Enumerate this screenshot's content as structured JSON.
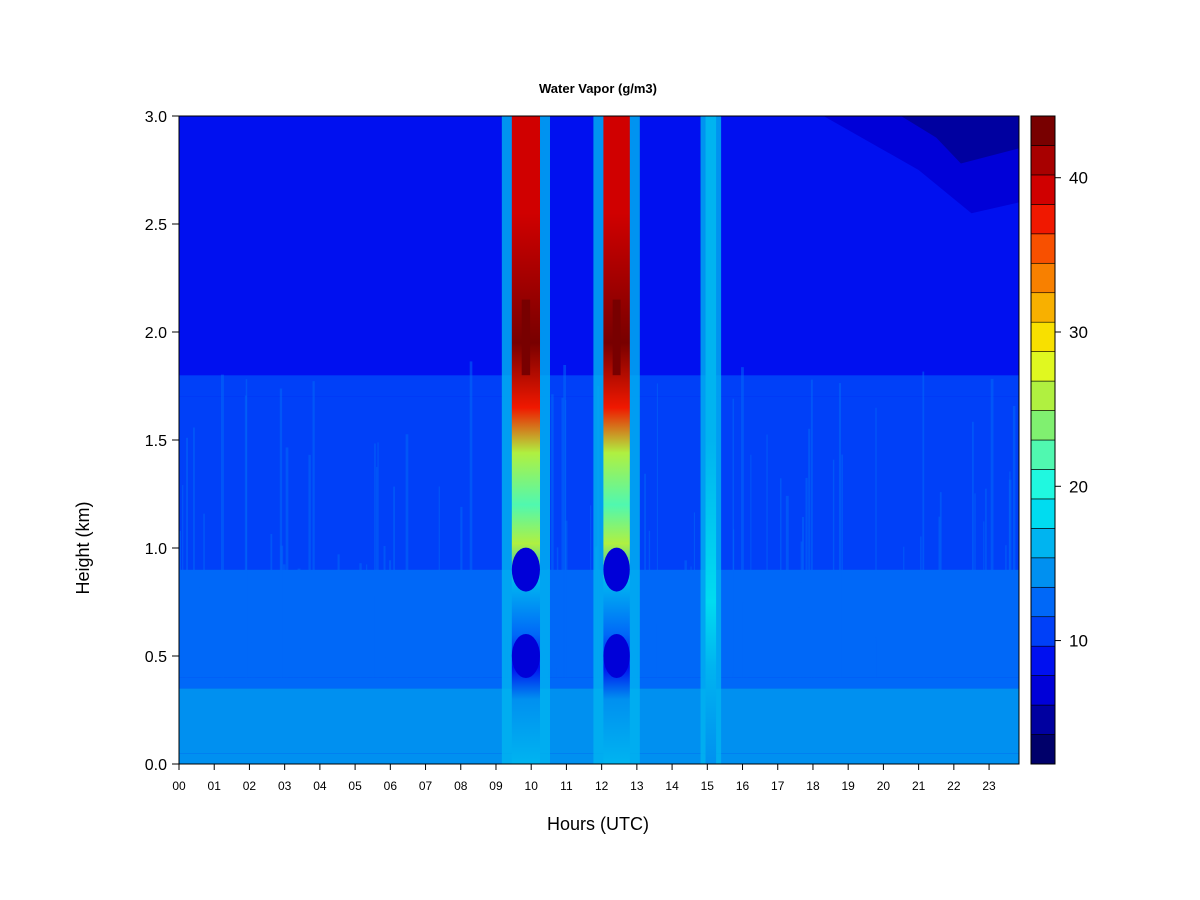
{
  "chart_data": {
    "type": "heatmap",
    "title": "Water Vapor (g/m3)",
    "xlabel": "Hours (UTC)",
    "ylabel": "Height (km)",
    "xlim": [
      0,
      23.85
    ],
    "ylim": [
      0,
      3.0
    ],
    "x_ticks": [
      {
        "value": 0,
        "label": "00"
      },
      {
        "value": 1,
        "label": "01"
      },
      {
        "value": 2,
        "label": "02"
      },
      {
        "value": 3,
        "label": "03"
      },
      {
        "value": 4,
        "label": "04"
      },
      {
        "value": 5,
        "label": "05"
      },
      {
        "value": 6,
        "label": "06"
      },
      {
        "value": 7,
        "label": "07"
      },
      {
        "value": 8,
        "label": "08"
      },
      {
        "value": 9,
        "label": "09"
      },
      {
        "value": 10,
        "label": "10"
      },
      {
        "value": 11,
        "label": "11"
      },
      {
        "value": 12,
        "label": "12"
      },
      {
        "value": 13,
        "label": "13"
      },
      {
        "value": 14,
        "label": "14"
      },
      {
        "value": 15,
        "label": "15"
      },
      {
        "value": 16,
        "label": "16"
      },
      {
        "value": 17,
        "label": "17"
      },
      {
        "value": 18,
        "label": "18"
      },
      {
        "value": 19,
        "label": "19"
      },
      {
        "value": 20,
        "label": "20"
      },
      {
        "value": 21,
        "label": "21"
      },
      {
        "value": 22,
        "label": "22"
      },
      {
        "value": 23,
        "label": "23"
      }
    ],
    "y_ticks": [
      {
        "value": 0.0,
        "label": "0.0"
      },
      {
        "value": 0.5,
        "label": "0.5"
      },
      {
        "value": 1.0,
        "label": "1.0"
      },
      {
        "value": 1.5,
        "label": "1.5"
      },
      {
        "value": 2.0,
        "label": "2.0"
      },
      {
        "value": 2.5,
        "label": "2.5"
      },
      {
        "value": 3.0,
        "label": "3.0"
      }
    ],
    "colorbar": {
      "range": [
        2,
        44
      ],
      "ticks": [
        {
          "value": 10,
          "label": "10"
        },
        {
          "value": 20,
          "label": "20"
        },
        {
          "value": 30,
          "label": "30"
        },
        {
          "value": 40,
          "label": "40"
        }
      ],
      "levels": [
        "#00006a",
        "#0000a0",
        "#0000d8",
        "#0010f0",
        "#0040f8",
        "#0068f8",
        "#0090f0",
        "#00b4f0",
        "#00dcf0",
        "#20f8e0",
        "#50f8b0",
        "#80f070",
        "#b0f040",
        "#e0f820",
        "#f8e000",
        "#f8b000",
        "#f88000",
        "#f85000",
        "#f01800",
        "#d00000",
        "#a80000",
        "#780000"
      ]
    },
    "background_profile": [
      {
        "height": 0.0,
        "value": 15
      },
      {
        "height": 0.05,
        "value": 14
      },
      {
        "height": 0.35,
        "value": 13
      },
      {
        "height": 0.4,
        "value": 12
      },
      {
        "height": 0.9,
        "value": 11.5
      },
      {
        "height": 1.7,
        "value": 11
      },
      {
        "height": 1.8,
        "value": 9
      },
      {
        "height": 3.0,
        "value": 8.5
      }
    ],
    "features": [
      {
        "name": "moist band ~10 UTC",
        "hour_start": 9.45,
        "hour_end": 10.25,
        "peak_value": 42,
        "peak_height": 2.0
      },
      {
        "name": "moist band ~12.5 UTC",
        "hour_start": 12.05,
        "hour_end": 12.8,
        "peak_value": 42,
        "peak_height": 2.0
      },
      {
        "name": "narrow moist band ~15 UTC",
        "hour_start": 14.95,
        "hour_end": 15.25,
        "peak_value": 17,
        "peak_height": 1.0
      },
      {
        "name": "dry region top-right",
        "hour_start": 18.5,
        "hour_end": 23.85,
        "min_value": 4,
        "height_range": [
          2.6,
          3.0
        ]
      },
      {
        "name": "dry pockets in bands",
        "heights": [
          0.5,
          0.9
        ],
        "value": 8
      }
    ]
  }
}
